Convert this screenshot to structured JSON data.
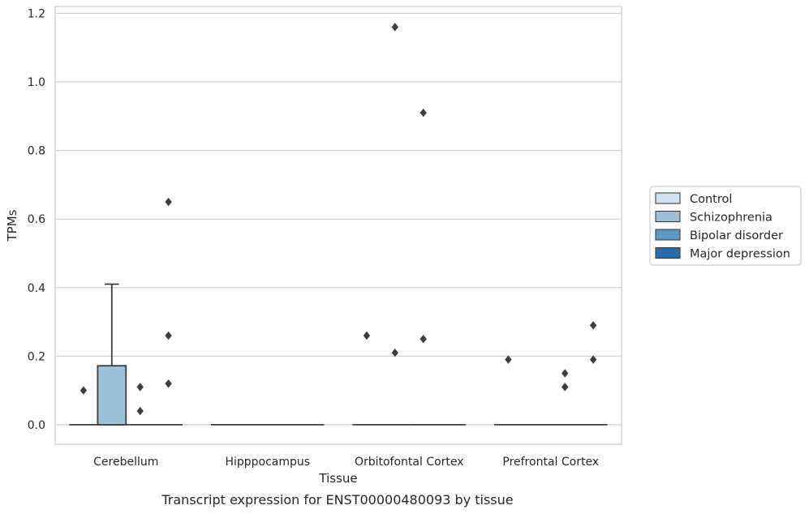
{
  "chart_data": {
    "type": "box",
    "title": "",
    "caption": "Transcript expression for ENST00000480093 by tissue",
    "xlabel": "Tissue",
    "ylabel": "TPMs",
    "ylim": [
      -0.057,
      1.22
    ],
    "yticks": [
      "0.0",
      "0.2",
      "0.4",
      "0.6",
      "0.8",
      "1.0",
      "1.2"
    ],
    "ytick_values": [
      0,
      0.2,
      0.4,
      0.6,
      0.8,
      1.0,
      1.2
    ],
    "grid": "horizontal",
    "legend_position": "right",
    "categories": [
      "Cerebellum",
      "Hipppocampus",
      "Orbitofontal Cortex",
      "Prefrontal Cortex"
    ],
    "series": [
      {
        "name": "Control",
        "color": "#d1e1f1",
        "boxes": [
          {
            "q1": 0,
            "median": 0,
            "q3": 0,
            "whisker_low": 0,
            "whisker_high": 0,
            "outliers": [
              0.1
            ]
          },
          {
            "q1": 0,
            "median": 0,
            "q3": 0,
            "whisker_low": 0,
            "whisker_high": 0,
            "outliers": []
          },
          {
            "q1": 0,
            "median": 0,
            "q3": 0,
            "whisker_low": 0,
            "whisker_high": 0,
            "outliers": [
              0.26
            ]
          },
          {
            "q1": 0,
            "median": 0,
            "q3": 0,
            "whisker_low": 0,
            "whisker_high": 0,
            "outliers": [
              0.19
            ]
          }
        ]
      },
      {
        "name": "Schizophrenia",
        "color": "#9cc2dc",
        "boxes": [
          {
            "q1": 0,
            "median": 0,
            "q3": 0.172,
            "whisker_low": 0,
            "whisker_high": 0.41,
            "outliers": []
          },
          {
            "q1": 0,
            "median": 0,
            "q3": 0,
            "whisker_low": 0,
            "whisker_high": 0,
            "outliers": []
          },
          {
            "q1": 0,
            "median": 0,
            "q3": 0,
            "whisker_low": 0,
            "whisker_high": 0,
            "outliers": [
              1.16,
              0.21
            ]
          },
          {
            "q1": 0,
            "median": 0,
            "q3": 0,
            "whisker_low": 0,
            "whisker_high": 0,
            "outliers": []
          }
        ]
      },
      {
        "name": "Bipolar disorder",
        "color": "#5a9ac8",
        "boxes": [
          {
            "q1": 0,
            "median": 0,
            "q3": 0,
            "whisker_low": 0,
            "whisker_high": 0,
            "outliers": [
              0.11,
              0.04
            ]
          },
          {
            "q1": 0,
            "median": 0,
            "q3": 0,
            "whisker_low": 0,
            "whisker_high": 0,
            "outliers": []
          },
          {
            "q1": 0,
            "median": 0,
            "q3": 0,
            "whisker_low": 0,
            "whisker_high": 0,
            "outliers": [
              0.91,
              0.25
            ]
          },
          {
            "q1": 0,
            "median": 0,
            "q3": 0,
            "whisker_low": 0,
            "whisker_high": 0,
            "outliers": [
              0.15,
              0.11
            ]
          }
        ]
      },
      {
        "name": "Major depression",
        "color": "#2d6aa8",
        "boxes": [
          {
            "q1": 0,
            "median": 0,
            "q3": 0,
            "whisker_low": 0,
            "whisker_high": 0,
            "outliers": [
              0.65,
              0.26,
              0.12
            ]
          },
          {
            "q1": 0,
            "median": 0,
            "q3": 0,
            "whisker_low": 0,
            "whisker_high": 0,
            "outliers": []
          },
          {
            "q1": 0,
            "median": 0,
            "q3": 0,
            "whisker_low": 0,
            "whisker_high": 0,
            "outliers": []
          },
          {
            "q1": 0,
            "median": 0,
            "q3": 0,
            "whisker_low": 0,
            "whisker_high": 0,
            "outliers": [
              0.29,
              0.19
            ]
          }
        ]
      }
    ]
  }
}
